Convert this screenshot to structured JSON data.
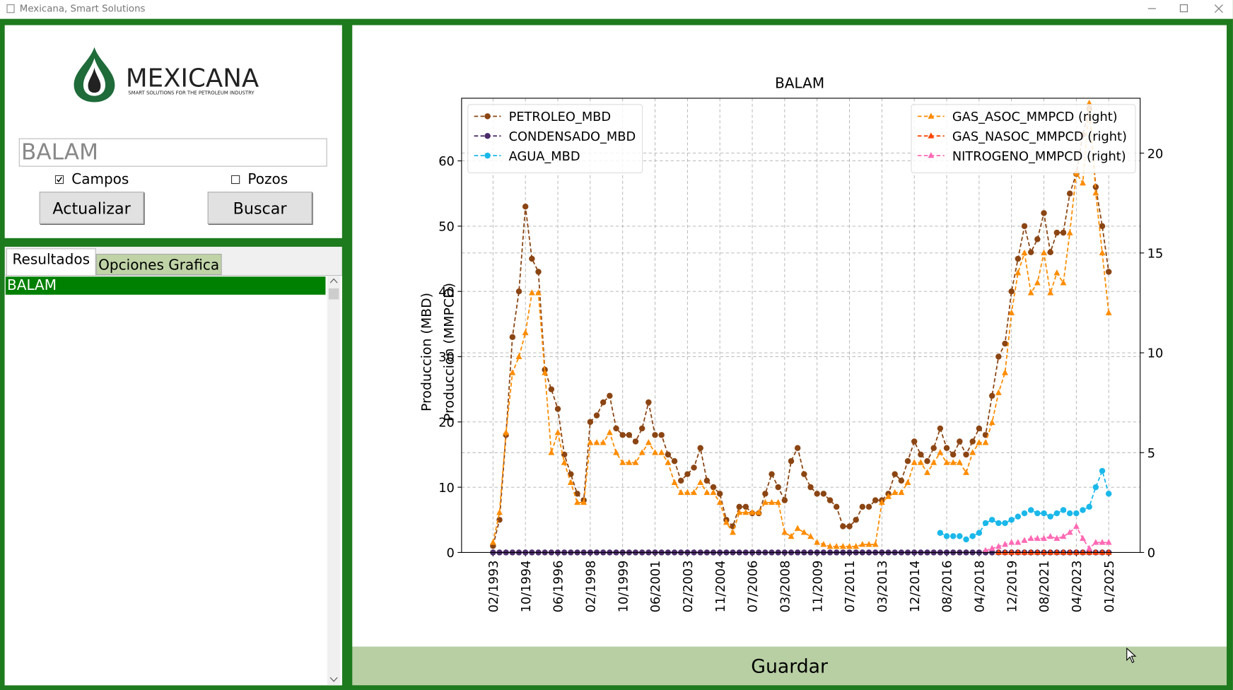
{
  "window": {
    "title": "Mexicana, Smart Solutions"
  },
  "sidebar": {
    "logo": {
      "name": "MEXICANA",
      "tagline": "SMART SOLUTIONS FOR THE PETROLEUM INDUSTRY"
    },
    "search": "BALAM",
    "checkboxes": [
      {
        "label": "Campos",
        "checked": true
      },
      {
        "label": "Pozos",
        "checked": false
      }
    ],
    "buttons": [
      "Actualizar",
      "Buscar"
    ],
    "tabs": [
      "Resultados",
      "Opciones Grafica"
    ],
    "results": [
      "BALAM"
    ]
  },
  "save_button": "Guardar",
  "chart_data": {
    "type": "line",
    "title": "BALAM",
    "y_label": "Produccion (MBD)",
    "y2_label": "Produccion (MMPCD)",
    "categories": [
      "02/1993",
      null,
      null,
      null,
      null,
      "10/1994",
      null,
      null,
      null,
      null,
      "06/1996",
      null,
      null,
      null,
      null,
      "02/1998",
      null,
      null,
      null,
      null,
      "10/1999",
      null,
      null,
      null,
      null,
      "06/2001",
      null,
      null,
      null,
      null,
      "02/2003",
      null,
      null,
      null,
      null,
      "11/2004",
      null,
      null,
      null,
      null,
      "07/2006",
      null,
      null,
      null,
      null,
      "03/2008",
      null,
      null,
      null,
      null,
      "11/2009",
      null,
      null,
      null,
      null,
      "07/2011",
      null,
      null,
      null,
      null,
      "03/2013",
      null,
      null,
      null,
      null,
      "12/2014",
      null,
      null,
      null,
      null,
      "08/2016",
      null,
      null,
      null,
      null,
      "04/2018",
      null,
      null,
      null,
      null,
      "12/2019",
      null,
      null,
      null,
      null,
      "08/2021",
      null,
      null,
      null,
      null,
      "04/2023",
      null,
      null,
      null,
      null,
      "01/2025"
    ],
    "ylim": [
      0,
      69.6
    ],
    "yticks": [
      0,
      10,
      20,
      30,
      40,
      50,
      60
    ],
    "y2lim": [
      0,
      22.75
    ],
    "y2ticks": [
      0,
      5,
      10,
      15,
      20
    ],
    "grid": true,
    "legend": "upper left",
    "legend2": "upper right",
    "series": [
      {
        "name": "PETROLEO_MBD",
        "color": "#8b4513",
        "marker": "o",
        "axis": "y",
        "values": [
          1,
          5,
          18,
          33,
          40,
          53,
          45,
          43,
          28,
          25,
          22,
          15,
          12,
          9,
          8,
          20,
          21,
          23,
          24,
          19,
          18,
          18,
          17,
          19,
          23,
          18,
          18,
          15,
          14,
          11,
          12,
          13,
          16,
          11,
          10,
          9,
          5,
          4,
          7,
          7,
          6,
          6,
          9,
          12,
          10,
          8,
          14,
          16,
          12,
          10,
          9,
          9,
          8,
          7,
          4,
          4,
          5,
          7,
          7,
          8,
          8,
          9,
          12,
          11,
          14,
          17,
          15,
          14,
          16,
          19,
          16,
          15,
          17,
          15,
          17,
          19,
          18,
          24,
          30,
          32,
          40,
          45,
          50,
          46,
          48,
          52,
          46,
          49,
          49,
          55,
          58,
          64,
          68,
          56,
          50,
          43
        ]
      },
      {
        "name": "CONDENSADO_MBD",
        "color": "#4b2c6b",
        "marker": "o",
        "axis": "y",
        "values": [
          0,
          0,
          0,
          0,
          0,
          0,
          0,
          0,
          0,
          0,
          0,
          0,
          0,
          0,
          0,
          0,
          0,
          0,
          0,
          0,
          0,
          0,
          0,
          0,
          0,
          0,
          0,
          0,
          0,
          0,
          0,
          0,
          0,
          0,
          0,
          0,
          0,
          0,
          0,
          0,
          0,
          0,
          0,
          0,
          0,
          0,
          0,
          0,
          0,
          0,
          0,
          0,
          0,
          0,
          0,
          0,
          0,
          0,
          0,
          0,
          0,
          0,
          0,
          0,
          0,
          0,
          0,
          0,
          0,
          0,
          0,
          0,
          0,
          0,
          0,
          0,
          0,
          0,
          0,
          0,
          0,
          0,
          0,
          0,
          0,
          0,
          0,
          0,
          0,
          0,
          0,
          0,
          0,
          0,
          0,
          0
        ]
      },
      {
        "name": "AGUA_MBD",
        "color": "#1ab8ea",
        "marker": "o",
        "axis": "y",
        "values": [
          null,
          null,
          null,
          null,
          null,
          null,
          null,
          null,
          null,
          null,
          null,
          null,
          null,
          null,
          null,
          null,
          null,
          null,
          null,
          null,
          null,
          null,
          null,
          null,
          null,
          null,
          null,
          null,
          null,
          null,
          null,
          null,
          null,
          null,
          null,
          null,
          null,
          null,
          null,
          null,
          null,
          null,
          null,
          null,
          null,
          null,
          null,
          null,
          null,
          null,
          null,
          null,
          null,
          null,
          null,
          null,
          null,
          null,
          null,
          null,
          null,
          null,
          null,
          null,
          null,
          null,
          null,
          null,
          null,
          3,
          2.5,
          2.5,
          2.5,
          2,
          2.5,
          3,
          4.5,
          5,
          4.5,
          4.5,
          5,
          5.5,
          6,
          6.5,
          6,
          6,
          5.5,
          6,
          6.5,
          6,
          6,
          6.5,
          7,
          10,
          12.5,
          9
        ]
      },
      {
        "name": "GAS_ASOC_MMPCD (right)",
        "color": "#ff8c00",
        "marker": "^",
        "axis": "y2",
        "values": [
          0.5,
          2,
          6,
          9,
          9.8,
          11,
          13,
          13,
          9,
          5,
          6,
          4.5,
          3.5,
          2.5,
          2.5,
          5.5,
          5.5,
          5.5,
          6,
          5,
          4.5,
          4.5,
          4.5,
          5,
          5.5,
          5,
          5,
          4.5,
          3.5,
          3,
          3,
          3,
          3.5,
          3,
          3,
          2.5,
          1.5,
          1,
          2,
          2,
          2,
          2,
          2.5,
          2.5,
          2.5,
          1,
          0.8,
          1.2,
          1,
          0.8,
          0.5,
          0.4,
          0.3,
          0.3,
          0.3,
          0.3,
          0.3,
          0.4,
          0.4,
          0.4,
          2.5,
          2.8,
          3,
          3,
          3.5,
          4.5,
          4.5,
          4,
          4.5,
          5,
          4.5,
          4.5,
          4.5,
          4,
          5,
          5.5,
          5.5,
          6.5,
          8,
          9,
          12,
          14,
          15,
          13,
          13.5,
          15,
          13,
          14,
          13.5,
          16,
          19,
          18.5,
          22.5,
          18,
          15,
          12
        ]
      },
      {
        "name": "GAS_NASOC_MMPCD (right)",
        "color": "#ff4500",
        "marker": "^",
        "axis": "y2",
        "values": [
          null,
          null,
          null,
          null,
          null,
          null,
          null,
          null,
          null,
          null,
          null,
          null,
          null,
          null,
          null,
          null,
          null,
          null,
          null,
          null,
          null,
          null,
          null,
          null,
          null,
          null,
          null,
          null,
          null,
          null,
          null,
          null,
          null,
          null,
          null,
          null,
          null,
          null,
          null,
          null,
          null,
          null,
          null,
          null,
          null,
          null,
          null,
          null,
          null,
          null,
          null,
          null,
          null,
          null,
          null,
          null,
          null,
          null,
          null,
          null,
          null,
          null,
          null,
          null,
          null,
          null,
          null,
          null,
          null,
          null,
          null,
          null,
          null,
          null,
          null,
          null,
          null,
          null,
          0,
          0,
          0,
          0,
          0,
          0,
          0,
          0,
          0,
          0,
          0,
          0,
          0,
          0,
          0,
          0,
          0,
          0
        ]
      },
      {
        "name": "NITROGENO_MMPCD (right)",
        "color": "#ff69b4",
        "marker": "^",
        "axis": "y2",
        "values": [
          null,
          null,
          null,
          null,
          null,
          null,
          null,
          null,
          null,
          null,
          null,
          null,
          null,
          null,
          null,
          null,
          null,
          null,
          null,
          null,
          null,
          null,
          null,
          null,
          null,
          null,
          null,
          null,
          null,
          null,
          null,
          null,
          null,
          null,
          null,
          null,
          null,
          null,
          null,
          null,
          null,
          null,
          null,
          null,
          null,
          null,
          null,
          null,
          null,
          null,
          null,
          null,
          null,
          null,
          null,
          null,
          null,
          null,
          null,
          null,
          null,
          null,
          null,
          null,
          null,
          null,
          null,
          null,
          null,
          null,
          null,
          null,
          null,
          null,
          null,
          null,
          0.1,
          0.2,
          0.3,
          0.4,
          0.5,
          0.5,
          0.6,
          0.7,
          0.7,
          0.7,
          0.8,
          0.7,
          0.8,
          1,
          1.3,
          0.7,
          0.2,
          0.5,
          0.5,
          0.5
        ]
      }
    ]
  }
}
